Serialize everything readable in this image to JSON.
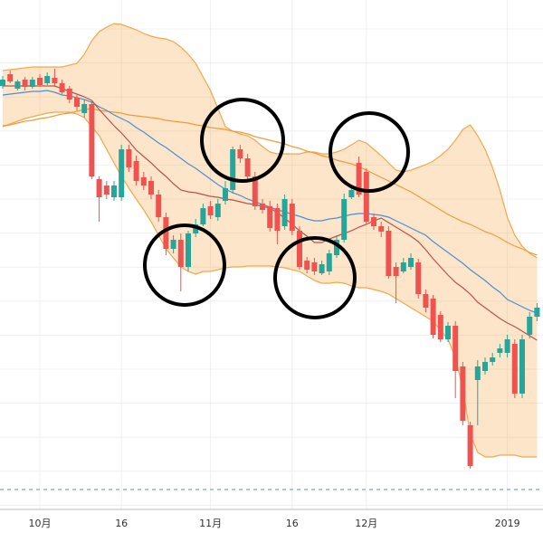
{
  "chart_data": {
    "type": "candlestick",
    "categories": [
      null,
      null,
      null,
      null,
      null,
      "10月",
      null,
      null,
      null,
      null,
      null,
      null,
      null,
      null,
      null,
      null,
      "16",
      null,
      null,
      null,
      null,
      null,
      null,
      null,
      null,
      null,
      null,
      null,
      "11月",
      null,
      null,
      null,
      null,
      null,
      null,
      null,
      null,
      null,
      null,
      "16",
      null,
      null,
      null,
      null,
      null,
      null,
      null,
      null,
      null,
      "12月",
      null,
      null,
      null,
      null,
      null,
      null,
      null,
      null,
      null,
      null,
      null,
      null,
      null,
      null,
      null,
      null,
      null,
      null,
      "2019",
      null,
      null,
      null,
      null
    ],
    "open": [
      505,
      518,
      502,
      512,
      504,
      514,
      508,
      514,
      508,
      502,
      492,
      475,
      485,
      402,
      395,
      382,
      382,
      435,
      422,
      404,
      400,
      385,
      360,
      325,
      335,
      305,
      342,
      352,
      372,
      360,
      378,
      390,
      435,
      425,
      405,
      375,
      372,
      370,
      350,
      375,
      345,
      312,
      310,
      298,
      300,
      318,
      335,
      382,
      420,
      410,
      360,
      350,
      345,
      305,
      300,
      305,
      310,
      275,
      270,
      252,
      225,
      240,
      195,
      130,
      180,
      190,
      200,
      210,
      210,
      220,
      165,
      230,
      250
    ],
    "high": [
      516,
      522,
      512,
      515,
      515,
      518,
      520,
      524,
      512,
      505,
      496,
      490,
      488,
      405,
      400,
      400,
      440,
      440,
      428,
      410,
      405,
      390,
      365,
      340,
      342,
      345,
      358,
      375,
      378,
      380,
      400,
      438,
      440,
      430,
      410,
      380,
      378,
      375,
      385,
      380,
      350,
      316,
      315,
      312,
      324,
      340,
      386,
      394,
      427,
      414,
      364,
      355,
      350,
      310,
      315,
      320,
      314,
      280,
      274,
      256,
      244,
      245,
      200,
      134,
      202,
      205,
      210,
      220,
      230,
      225,
      230,
      255,
      265
    ],
    "low": [
      502,
      508,
      500,
      500,
      502,
      504,
      506,
      504,
      496,
      486,
      478,
      470,
      402,
      355,
      380,
      378,
      378,
      410,
      395,
      390,
      380,
      355,
      318,
      320,
      278,
      300,
      338,
      350,
      358,
      356,
      374,
      386,
      420,
      402,
      368,
      364,
      344,
      330,
      346,
      340,
      302,
      298,
      296,
      296,
      296,
      315,
      332,
      380,
      382,
      352,
      346,
      338,
      292,
      265,
      298,
      302,
      270,
      255,
      226,
      222,
      222,
      160,
      130,
      82,
      130,
      186,
      196,
      205,
      205,
      160,
      160,
      226,
      245
    ],
    "close": [
      512,
      510,
      510,
      504,
      512,
      506,
      516,
      508,
      498,
      490,
      482,
      485,
      405,
      382,
      385,
      395,
      435,
      415,
      400,
      395,
      385,
      360,
      325,
      335,
      305,
      342,
      352,
      370,
      362,
      375,
      392,
      435,
      425,
      405,
      372,
      368,
      348,
      345,
      380,
      345,
      305,
      302,
      300,
      308,
      320,
      335,
      380,
      390,
      385,
      355,
      350,
      344,
      295,
      295,
      310,
      315,
      275,
      260,
      230,
      225,
      240,
      190,
      135,
      85,
      195,
      200,
      205,
      215,
      225,
      165,
      225,
      250,
      260
    ],
    "up_color": "#26a69a",
    "down_color": "#ef5350",
    "band": {
      "color": "#f5a84a",
      "upper": [
        522,
        523,
        524,
        525,
        526,
        526,
        526,
        526,
        526,
        528,
        530,
        540,
        555,
        565,
        570,
        574,
        573,
        570,
        567,
        563,
        560,
        558,
        557,
        554,
        548,
        540,
        530,
        515,
        500,
        480,
        460,
        455,
        452,
        450,
        445,
        438,
        432,
        430,
        430,
        430,
        430,
        432,
        432,
        430,
        430,
        432,
        435,
        440,
        445,
        442,
        435,
        428,
        420,
        412,
        410,
        412,
        415,
        418,
        422,
        428,
        435,
        445,
        457,
        462,
        450,
        435,
        415,
        390,
        360,
        340,
        328,
        320,
        315
      ],
      "lower": [
        460,
        463,
        466,
        469,
        471,
        473,
        475,
        476,
        476,
        476,
        474,
        470,
        460,
        450,
        435,
        420,
        405,
        392,
        380,
        368,
        355,
        340,
        325,
        315,
        305,
        300,
        297,
        300,
        300,
        302,
        304,
        305,
        305,
        306,
        306,
        306,
        306,
        305,
        304,
        302,
        300,
        295,
        290,
        287,
        287,
        288,
        287,
        284,
        282,
        282,
        280,
        278,
        275,
        270,
        265,
        260,
        255,
        250,
        245,
        235,
        225,
        205,
        170,
        120,
        100,
        95,
        95,
        97,
        97,
        97,
        95,
        95,
        95
      ]
    },
    "lines": [
      {
        "color": "#f29c38",
        "values": [
          461,
          462,
          464,
          466,
          467,
          469,
          470,
          472,
          474,
          475,
          477,
          479,
          480,
          478,
          477,
          476,
          475,
          473,
          472,
          471,
          470,
          469,
          467,
          466,
          465,
          464,
          462,
          461,
          459,
          458,
          457,
          455,
          454,
          452,
          449,
          447,
          445,
          443,
          441,
          438,
          436,
          433,
          431,
          428,
          426,
          423,
          421,
          419,
          416,
          412,
          408,
          404,
          400,
          396,
          392,
          388,
          383,
          378,
          373,
          368,
          363,
          359,
          355,
          352,
          348,
          344,
          341,
          337,
          332,
          328,
          325,
          321,
          318
        ]
      },
      {
        "color": "#4a90d9",
        "values": [
          495,
          496,
          497,
          498,
          499,
          499,
          500,
          498,
          495,
          494,
          492,
          490,
          487,
          482,
          478,
          473,
          469,
          465,
          459,
          454,
          448,
          442,
          437,
          431,
          425,
          419,
          414,
          408,
          402,
          396,
          391,
          387,
          384,
          380,
          377,
          374,
          371,
          368,
          366,
          363,
          361,
          358,
          356,
          356,
          358,
          359,
          361,
          363,
          364,
          364,
          363,
          362,
          360,
          356,
          352,
          348,
          344,
          340,
          333,
          327,
          321,
          315,
          309,
          302,
          296,
          290,
          283,
          277,
          269,
          265,
          261,
          257,
          254
        ]
      },
      {
        "color": "#c0504d",
        "values": [
          505,
          505,
          505,
          505,
          505,
          505,
          505,
          505,
          502,
          499,
          496,
          493,
          489,
          479,
          470,
          461,
          453,
          444,
          434,
          427,
          420,
          412,
          405,
          397,
          390,
          388,
          387,
          385,
          383,
          382,
          380,
          379,
          377,
          375,
          374,
          372,
          370,
          365,
          359,
          352,
          345,
          339,
          332,
          332,
          336,
          339,
          342,
          345,
          349,
          352,
          356,
          359,
          354,
          349,
          344,
          339,
          333,
          324,
          314,
          305,
          296,
          288,
          282,
          275,
          266,
          260,
          254,
          248,
          243,
          239,
          234,
          229,
          224
        ]
      }
    ],
    "ylim": [
      0,
      600
    ]
  }
}
